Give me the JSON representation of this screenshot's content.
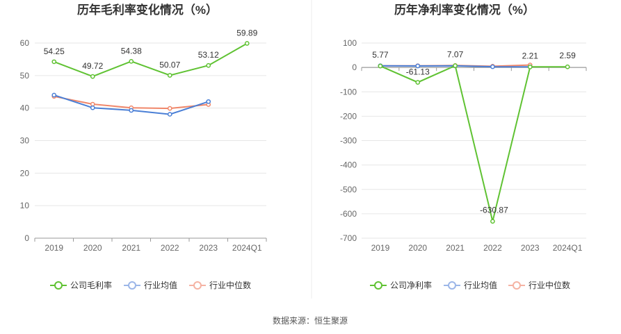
{
  "source_text": "数据来源：恒生聚源",
  "colors": {
    "company": "#5fc232",
    "industry_avg": "#4a7fd6",
    "industry_median": "#f0876a",
    "grid": "#e6e6e6",
    "axis": "#999999"
  },
  "chart_data": [
    {
      "type": "line",
      "title": "历年毛利率变化情况（%）",
      "categories": [
        "2019",
        "2020",
        "2021",
        "2022",
        "2023",
        "2024Q1"
      ],
      "ylim": [
        0,
        60
      ],
      "yticks": [
        0,
        10,
        20,
        30,
        40,
        50,
        60
      ],
      "series": [
        {
          "name": "公司毛利率",
          "color": "#5fc232",
          "values": [
            54.25,
            49.72,
            54.38,
            50.07,
            53.12,
            59.89
          ],
          "labels": [
            "54.25",
            "49.72",
            "54.38",
            "50.07",
            "53.12",
            "59.89"
          ]
        },
        {
          "name": "行业均值",
          "color": "#4a7fd6",
          "values": [
            44.0,
            40.1,
            39.3,
            38.1,
            42.0,
            null
          ]
        },
        {
          "name": "行业中位数",
          "color": "#f0876a",
          "values": [
            43.6,
            41.2,
            40.1,
            39.9,
            41.1,
            null
          ]
        }
      ]
    },
    {
      "type": "line",
      "title": "历年净利率变化情况（%）",
      "categories": [
        "2019",
        "2020",
        "2021",
        "2022",
        "2023",
        "2024Q1"
      ],
      "ylim": [
        -700,
        100
      ],
      "yticks": [
        100,
        0,
        -100,
        -200,
        -300,
        -400,
        -500,
        -600,
        -700
      ],
      "series": [
        {
          "name": "公司净利率",
          "color": "#5fc232",
          "values": [
            5.77,
            -61.13,
            7.07,
            -630.87,
            2.21,
            2.59
          ],
          "labels": [
            "5.77",
            "-61.13",
            "7.07",
            "-630.87",
            "2.21",
            "2.59"
          ]
        },
        {
          "name": "行业均值",
          "color": "#4a7fd6",
          "values": [
            7.0,
            6.0,
            6.5,
            3.0,
            2.5,
            null
          ]
        },
        {
          "name": "行业中位数",
          "color": "#f0876a",
          "values": [
            6.5,
            7.0,
            8.0,
            5.0,
            10.0,
            null
          ]
        }
      ]
    }
  ]
}
